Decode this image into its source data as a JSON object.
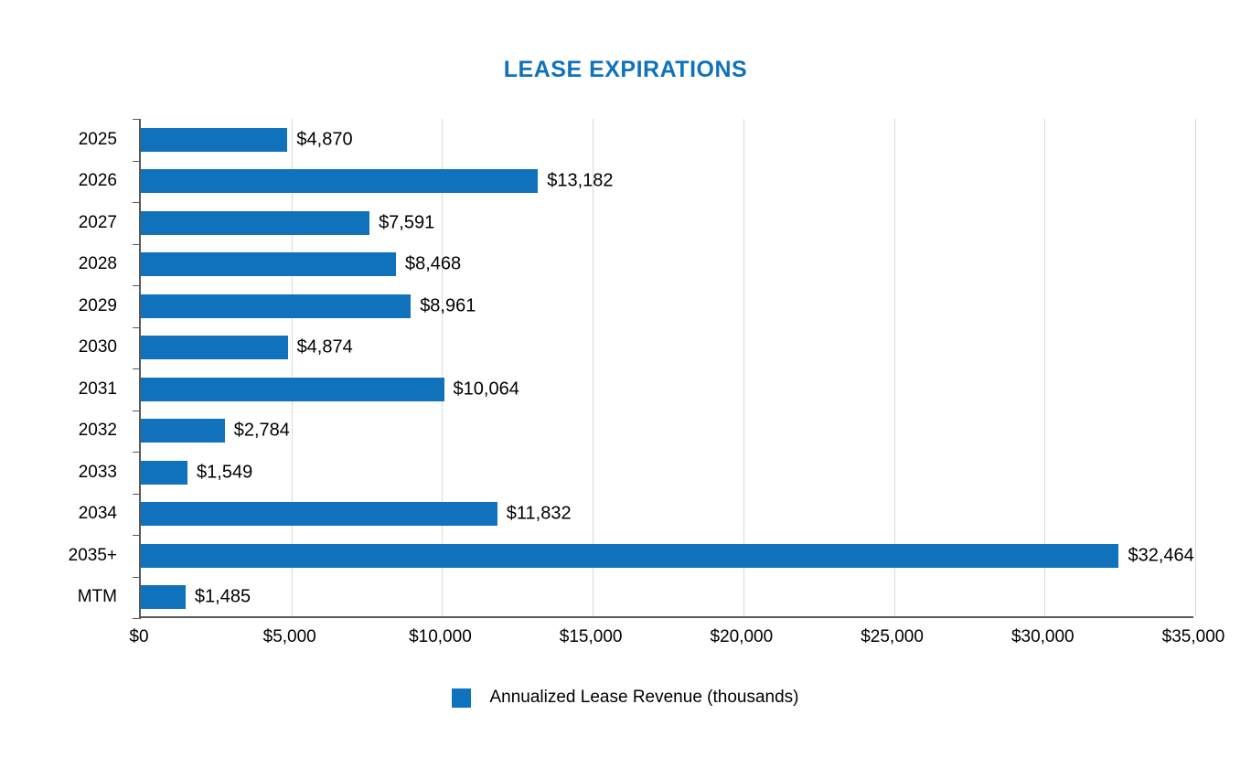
{
  "chart_data": {
    "type": "bar",
    "orientation": "horizontal",
    "title": "LEASE EXPIRATIONS",
    "categories": [
      "2025",
      "2026",
      "2027",
      "2028",
      "2029",
      "2030",
      "2031",
      "2032",
      "2033",
      "2034",
      "2035+",
      "MTM"
    ],
    "values": [
      4870,
      13182,
      7591,
      8468,
      8961,
      4874,
      10064,
      2784,
      1549,
      11832,
      32464,
      1485
    ],
    "value_labels": [
      "$4,870",
      "$13,182",
      "$7,591",
      "$8,468",
      "$8,961",
      "$4,874",
      "$10,064",
      "$2,784",
      "$1,549",
      "$11,832",
      "$32,464",
      "$1,485"
    ],
    "xlim": [
      0,
      35000
    ],
    "x_tick_values": [
      0,
      5000,
      10000,
      15000,
      20000,
      25000,
      30000,
      35000
    ],
    "x_tick_labels": [
      "$0",
      "$5,000",
      "$10,000",
      "$15,000",
      "$20,000",
      "$25,000",
      "$30,000",
      "$35,000"
    ],
    "legend_label": "Annualized Lease Revenue (thousands)",
    "legend_position": "bottom-center",
    "grid": "vertical",
    "bar_color": "#1072BC",
    "title_color": "#1072BC",
    "gridline_color": "#d9d9d9",
    "axis_color": "#595959"
  }
}
